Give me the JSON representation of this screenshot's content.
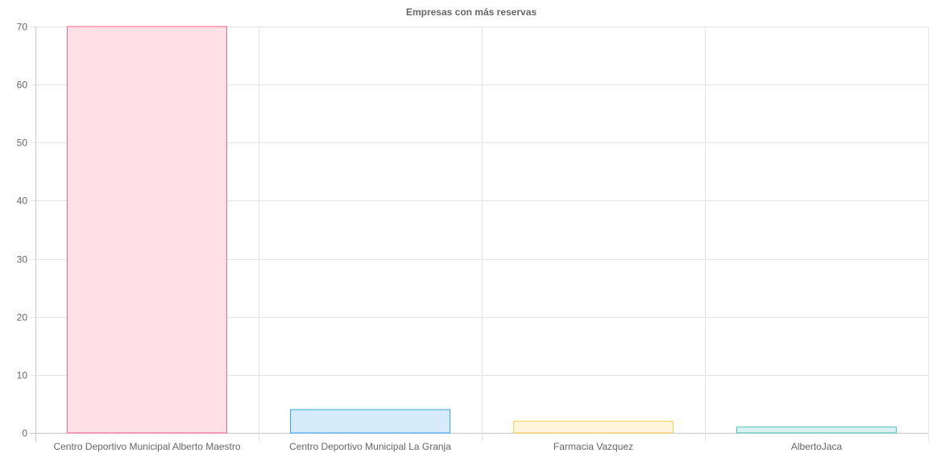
{
  "chart_data": {
    "type": "bar",
    "title": "Empresas con más reservas",
    "xlabel": "",
    "ylabel": "",
    "categories": [
      "Centro Deportivo Municipal Alberto Maestro",
      "Centro Deportivo Municipal La Granja",
      "Farmacia Vazquez",
      "AlbertoJaca"
    ],
    "values": [
      70,
      4,
      2,
      1
    ],
    "ylim": [
      0,
      70
    ],
    "yticks": [
      0,
      10,
      20,
      30,
      40,
      50,
      60,
      70
    ],
    "grid": true,
    "legend": "none",
    "bar_colors": [
      {
        "fill": "#ffe0e6",
        "stroke": "#ff6384"
      },
      {
        "fill": "#d7ecfb",
        "stroke": "#36a2eb"
      },
      {
        "fill": "#fff5dd",
        "stroke": "#ffcd56"
      },
      {
        "fill": "#dbf2f2",
        "stroke": "#4bc0c0"
      }
    ]
  }
}
